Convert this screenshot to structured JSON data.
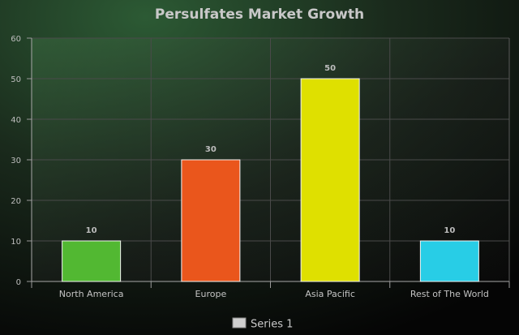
{
  "chart_data": {
    "type": "bar",
    "title": "Persulfates Market Growth",
    "categories": [
      "North America",
      "Europe",
      "Asia Pacific",
      "Rest of The World"
    ],
    "series": [
      {
        "name": "Series 1",
        "values": [
          10,
          30,
          50,
          10
        ]
      }
    ],
    "bar_colors": [
      "#52b832",
      "#ea561c",
      "#dfe000",
      "#28cde6"
    ],
    "ylim": [
      0,
      60
    ],
    "yticks": [
      0,
      10,
      20,
      30,
      40,
      50,
      60
    ],
    "xlabel": "",
    "ylabel": "",
    "grid": true,
    "data_labels": true,
    "legend_position": "bottom",
    "legend_swatch_color": "#cfcfcf"
  }
}
